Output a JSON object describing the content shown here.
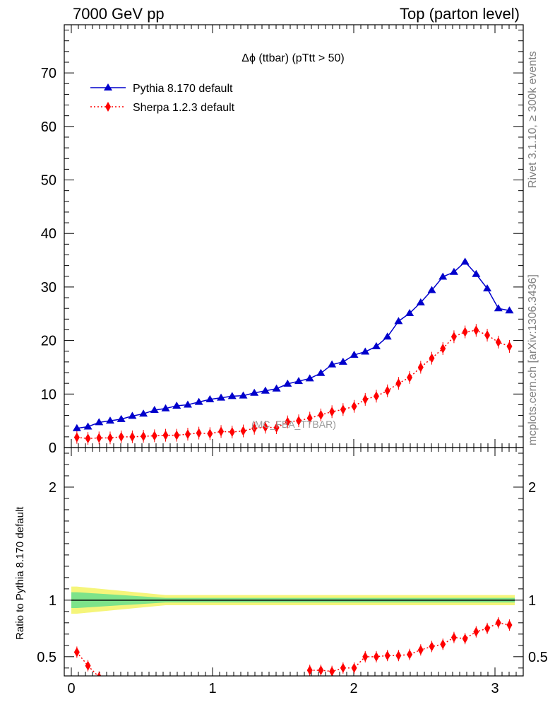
{
  "header": {
    "left": "7000 GeV pp",
    "right": "Top (parton level)"
  },
  "side_labels": {
    "rivet": "Rivet 3.1.10, ≥ 300k events",
    "mcplots": "mcplots.cern.ch [arXiv:1306.3436]"
  },
  "chart_data": {
    "type": "line",
    "title": "Δϕ (ttbar) (pTtt > 50)",
    "watermark": "(MC_FBA_TTBAR)",
    "xlim": [
      -0.05,
      3.2
    ],
    "ylim": [
      0,
      79
    ],
    "ratio_ylim": [
      0.33,
      2.35
    ],
    "ratio_ylabel": "Ratio to Pythia 8.170 default",
    "x_ticks": [
      "0",
      "1",
      "2",
      "3"
    ],
    "y_ticks": [
      "0",
      "10",
      "20",
      "30",
      "40",
      "50",
      "60",
      "70"
    ],
    "ratio_ticks": [
      "0.5",
      "1",
      "2"
    ],
    "legend_position": "top-left",
    "colors": {
      "pythia": "#0000cc",
      "sherpa": "#ff0000",
      "band_yellow": "#f5f57a",
      "band_green": "#7de38a"
    },
    "x": [
      0.0393,
      0.1178,
      0.1963,
      0.2749,
      0.3534,
      0.432,
      0.5105,
      0.589,
      0.6676,
      0.7461,
      0.8247,
      0.9032,
      0.9817,
      1.0603,
      1.1388,
      1.2174,
      1.2959,
      1.3744,
      1.453,
      1.5315,
      1.6101,
      1.6886,
      1.7671,
      1.8457,
      1.9242,
      2.0028,
      2.0813,
      2.1598,
      2.2384,
      2.3169,
      2.3955,
      2.474,
      2.5525,
      2.6311,
      2.7096,
      2.7882,
      2.8667,
      2.9452,
      3.0238,
      3.1023
    ],
    "series": [
      {
        "name": "Pythia 8.170 default",
        "values": [
          3.6,
          3.9,
          4.7,
          5.0,
          5.3,
          5.9,
          6.3,
          7.0,
          7.3,
          7.8,
          8.0,
          8.5,
          9.0,
          9.3,
          9.6,
          9.7,
          10.2,
          10.6,
          11.0,
          11.9,
          12.4,
          12.9,
          13.9,
          15.5,
          16.0,
          17.3,
          17.9,
          18.9,
          20.7,
          23.6,
          25.1,
          27.1,
          29.4,
          31.9,
          32.8,
          34.7,
          32.4,
          29.7,
          26.0,
          25.6
        ]
      },
      {
        "name": "Sherpa 1.2.3 default",
        "values": [
          1.9,
          1.7,
          1.8,
          1.8,
          2.0,
          2.0,
          2.1,
          2.2,
          2.3,
          2.3,
          2.5,
          2.7,
          2.6,
          3.0,
          2.9,
          3.1,
          3.6,
          3.8,
          3.7,
          4.8,
          5.0,
          5.5,
          6.1,
          6.7,
          7.1,
          7.7,
          9.0,
          9.6,
          10.6,
          12.0,
          13.1,
          15.0,
          16.7,
          18.5,
          20.7,
          21.6,
          21.9,
          21.0,
          19.7,
          18.9
        ]
      }
    ],
    "ratio": {
      "x": [
        0.0393,
        0.1178,
        0.1963,
        1.6886,
        1.7671,
        1.8457,
        1.9242,
        2.0028,
        2.0813,
        2.1598,
        2.2384,
        2.3169,
        2.3955,
        2.474,
        2.5525,
        2.6311,
        2.7096,
        2.7882,
        2.8667,
        2.9452,
        3.0238,
        3.1023
      ],
      "values": [
        0.54,
        0.42,
        0.32,
        0.38,
        0.38,
        0.37,
        0.4,
        0.4,
        0.5,
        0.5,
        0.51,
        0.51,
        0.52,
        0.56,
        0.59,
        0.61,
        0.67,
        0.66,
        0.72,
        0.75,
        0.8,
        0.78
      ]
    }
  }
}
